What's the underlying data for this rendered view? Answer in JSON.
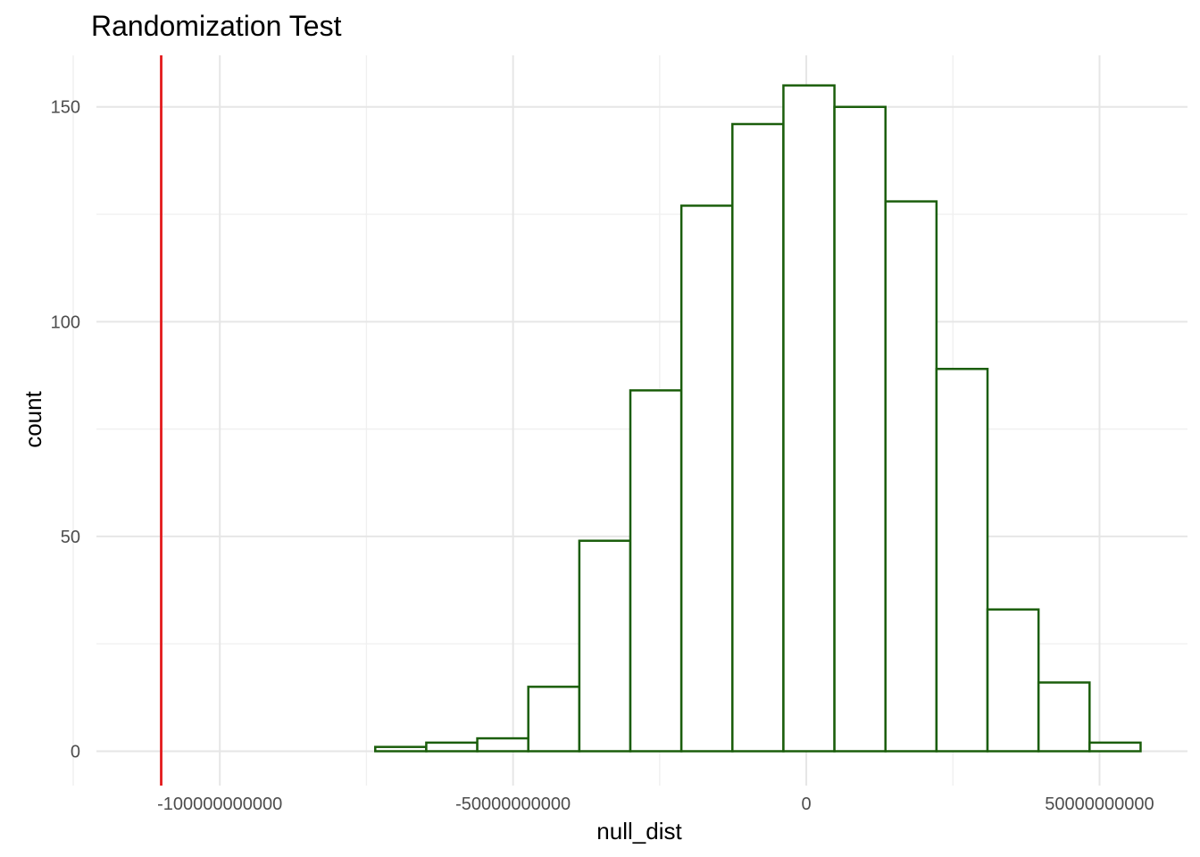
{
  "chart_data": {
    "type": "bar",
    "title": "Randomization Test",
    "xlabel": "null_dist",
    "ylabel": "count",
    "xlim": [
      -125000000000,
      65000000000
    ],
    "ylim": [
      -8,
      162
    ],
    "x_ticks": [
      {
        "value": -100000000000,
        "label": "-100000000000"
      },
      {
        "value": -50000000000,
        "label": "-50000000000"
      },
      {
        "value": 0,
        "label": "0"
      },
      {
        "value": 50000000000,
        "label": "50000000000"
      }
    ],
    "y_ticks": [
      {
        "value": 0,
        "label": "0"
      },
      {
        "value": 50,
        "label": "50"
      },
      {
        "value": 100,
        "label": "100"
      },
      {
        "value": 150,
        "label": "150"
      }
    ],
    "bin_width": 8700000000,
    "bins": [
      {
        "x_start": -117000000000,
        "count": 0
      },
      {
        "x_start": -108300000000,
        "count": 0
      },
      {
        "x_start": -99600000000,
        "count": 0
      },
      {
        "x_start": -90900000000,
        "count": 0
      },
      {
        "x_start": -82200000000,
        "count": 0
      },
      {
        "x_start": -73500000000,
        "count": 1
      },
      {
        "x_start": -64800000000,
        "count": 2
      },
      {
        "x_start": -56100000000,
        "count": 3
      },
      {
        "x_start": -47400000000,
        "count": 15
      },
      {
        "x_start": -38700000000,
        "count": 49
      },
      {
        "x_start": -30000000000,
        "count": 84
      },
      {
        "x_start": -21300000000,
        "count": 127
      },
      {
        "x_start": -12600000000,
        "count": 146
      },
      {
        "x_start": -3900000000,
        "count": 155
      },
      {
        "x_start": 4800000000,
        "count": 150
      },
      {
        "x_start": 13500000000,
        "count": 128
      },
      {
        "x_start": 22200000000,
        "count": 89
      },
      {
        "x_start": 30900000000,
        "count": 33
      },
      {
        "x_start": 39600000000,
        "count": 16
      },
      {
        "x_start": 48300000000,
        "count": 2
      }
    ],
    "observed_line": {
      "x": -110000000000,
      "color": "#e31a1c"
    },
    "bar_outline_color": "#1b5e0c",
    "bar_fill_color": "#ffffff",
    "grid": true,
    "legend": "none"
  }
}
